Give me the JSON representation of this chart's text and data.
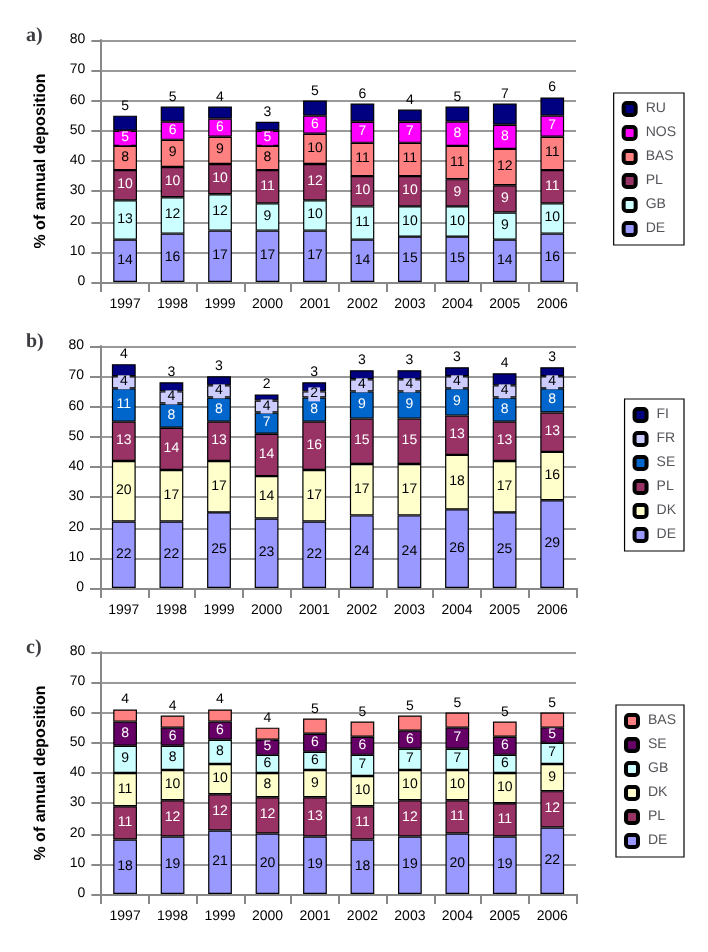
{
  "chart_data": [
    {
      "type": "bar",
      "title": "a)",
      "ylabel": "% of annual deposition",
      "stacked": true,
      "data_labels": true,
      "grid": "y",
      "legend": "right",
      "ylim": [
        0,
        80
      ],
      "yticks": [
        0,
        10,
        20,
        30,
        40,
        50,
        60,
        70,
        80
      ],
      "categories": [
        "1997",
        "1998",
        "1999",
        "2000",
        "2001",
        "2002",
        "2003",
        "2004",
        "2005",
        "2006"
      ],
      "series": [
        {
          "name": "DE",
          "color": "#9999ff",
          "values": [
            14,
            16,
            17,
            17,
            17,
            14,
            15,
            15,
            14,
            16
          ]
        },
        {
          "name": "GB",
          "color": "#ccffff",
          "values": [
            13,
            12,
            12,
            9,
            10,
            11,
            10,
            10,
            9,
            10
          ]
        },
        {
          "name": "PL",
          "color": "#993366",
          "values": [
            10,
            10,
            10,
            11,
            12,
            10,
            10,
            9,
            9,
            11
          ]
        },
        {
          "name": "BAS",
          "color": "#ff8080",
          "values": [
            8,
            9,
            9,
            8,
            10,
            11,
            11,
            11,
            12,
            11
          ]
        },
        {
          "name": "NOS",
          "color": "#ff00ff",
          "values": [
            5,
            6,
            6,
            5,
            6,
            7,
            7,
            8,
            8,
            7
          ]
        },
        {
          "name": "RU",
          "color": "#000080",
          "values": [
            5,
            5,
            4,
            3,
            5,
            6,
            4,
            5,
            7,
            6
          ]
        }
      ]
    },
    {
      "type": "bar",
      "title": "b)",
      "stacked": true,
      "data_labels": true,
      "grid": "y",
      "legend": "right",
      "ylim": [
        0,
        80
      ],
      "yticks": [
        0,
        10,
        20,
        30,
        40,
        50,
        60,
        70,
        80
      ],
      "categories": [
        "1997",
        "1998",
        "1999",
        "2000",
        "2001",
        "2002",
        "2003",
        "2004",
        "2005",
        "2006"
      ],
      "series": [
        {
          "name": "DE",
          "color": "#9999ff",
          "values": [
            22,
            22,
            25,
            23,
            22,
            24,
            24,
            26,
            25,
            29
          ]
        },
        {
          "name": "DK",
          "color": "#ffffcc",
          "values": [
            20,
            17,
            17,
            14,
            17,
            17,
            17,
            18,
            17,
            16
          ]
        },
        {
          "name": "PL",
          "color": "#993366",
          "values": [
            13,
            14,
            13,
            14,
            16,
            15,
            15,
            13,
            13,
            13
          ]
        },
        {
          "name": "SE",
          "color": "#0066cc",
          "values": [
            11,
            8,
            8,
            7,
            8,
            9,
            9,
            9,
            8,
            8
          ]
        },
        {
          "name": "FR",
          "color": "#ccccff",
          "values": [
            4,
            4,
            4,
            4,
            2,
            4,
            4,
            4,
            4,
            4
          ]
        },
        {
          "name": "FI",
          "color": "#000080",
          "values": [
            4,
            3,
            3,
            2,
            3,
            3,
            3,
            3,
            4,
            3
          ]
        }
      ]
    },
    {
      "type": "bar",
      "title": "c)",
      "ylabel": "% of annual deposition",
      "stacked": true,
      "data_labels": true,
      "grid": "y",
      "legend": "right",
      "ylim": [
        0,
        80
      ],
      "yticks": [
        0,
        10,
        20,
        30,
        40,
        50,
        60,
        70,
        80
      ],
      "categories": [
        "1997",
        "1998",
        "1999",
        "2000",
        "2001",
        "2002",
        "2003",
        "2004",
        "2005",
        "2006"
      ],
      "series": [
        {
          "name": "DE",
          "color": "#9999ff",
          "values": [
            18,
            19,
            21,
            20,
            19,
            18,
            19,
            20,
            19,
            22
          ]
        },
        {
          "name": "PL",
          "color": "#993366",
          "values": [
            11,
            12,
            12,
            12,
            13,
            11,
            12,
            11,
            11,
            12
          ]
        },
        {
          "name": "DK",
          "color": "#ffffcc",
          "values": [
            11,
            10,
            10,
            8,
            9,
            10,
            10,
            10,
            10,
            9
          ]
        },
        {
          "name": "GB",
          "color": "#ccffff",
          "values": [
            9,
            8,
            8,
            6,
            6,
            7,
            7,
            7,
            6,
            7
          ]
        },
        {
          "name": "SE",
          "color": "#660066",
          "values": [
            8,
            6,
            6,
            5,
            6,
            6,
            6,
            7,
            6,
            5
          ]
        },
        {
          "name": "BAS",
          "color": "#ff8080",
          "values": [
            4,
            4,
            4,
            4,
            5,
            5,
            5,
            5,
            5,
            5
          ]
        }
      ]
    }
  ]
}
